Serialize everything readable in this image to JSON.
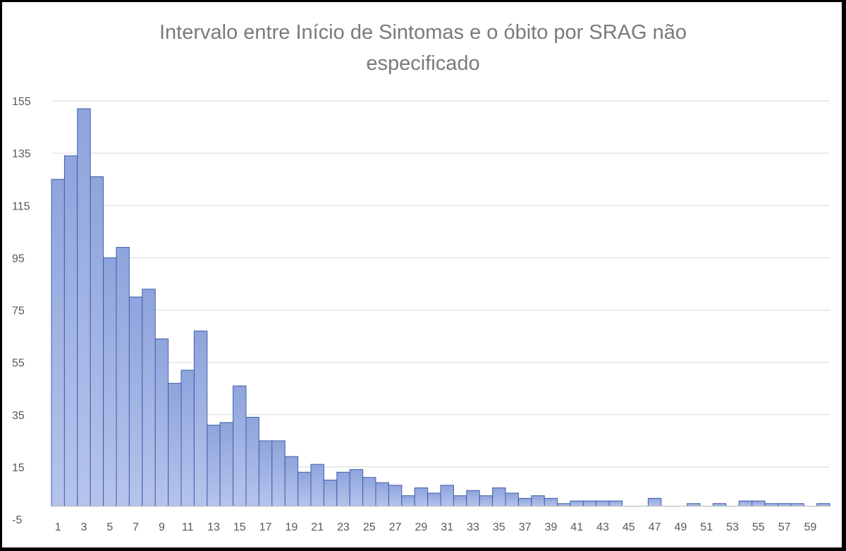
{
  "chart_data": {
    "type": "bar",
    "title": "Intervalo entre Início de Sintomas e o óbito por SRAG não especificado",
    "title_lines": [
      "Intervalo entre Início de Sintomas e o óbito por SRAG não",
      "especificado"
    ],
    "xlabel": "",
    "ylabel": "",
    "ylim": [
      -5,
      155
    ],
    "y_ticks": [
      -5,
      15,
      35,
      55,
      75,
      95,
      115,
      135,
      155
    ],
    "categories": [
      1,
      2,
      3,
      4,
      5,
      6,
      7,
      8,
      9,
      10,
      11,
      12,
      13,
      14,
      15,
      16,
      17,
      18,
      19,
      20,
      21,
      22,
      23,
      24,
      25,
      26,
      27,
      28,
      29,
      30,
      31,
      32,
      33,
      34,
      35,
      36,
      37,
      38,
      39,
      40,
      41,
      42,
      43,
      44,
      45,
      46,
      47,
      48,
      49,
      50,
      51,
      52,
      53,
      54,
      55,
      56,
      57,
      58,
      59,
      60
    ],
    "x_tick_labels": [
      "1",
      "3",
      "5",
      "7",
      "9",
      "11",
      "13",
      "15",
      "17",
      "19",
      "21",
      "23",
      "25",
      "27",
      "29",
      "31",
      "33",
      "35",
      "37",
      "39",
      "41",
      "43",
      "45",
      "47",
      "49",
      "51",
      "53",
      "55",
      "57",
      "59"
    ],
    "values": [
      125,
      134,
      152,
      126,
      95,
      99,
      80,
      83,
      64,
      47,
      52,
      67,
      31,
      32,
      46,
      34,
      25,
      25,
      19,
      13,
      16,
      10,
      13,
      14,
      11,
      9,
      8,
      4,
      7,
      5,
      8,
      4,
      6,
      4,
      7,
      5,
      3,
      4,
      3,
      1,
      2,
      2,
      2,
      2,
      0,
      0,
      3,
      0,
      0,
      1,
      0,
      1,
      0,
      2,
      2,
      1,
      1,
      1,
      0,
      1
    ],
    "grid": true,
    "legend": "none",
    "colors": {
      "bar_fill_top": "#8ea4dc",
      "bar_fill_bottom": "#b6c4ec",
      "bar_stroke": "#3f5fa9",
      "grid": "#d9d9d9",
      "axis": "#bfbfbf",
      "tick_text": "#595959",
      "title_text": "#7a7a7a"
    }
  }
}
